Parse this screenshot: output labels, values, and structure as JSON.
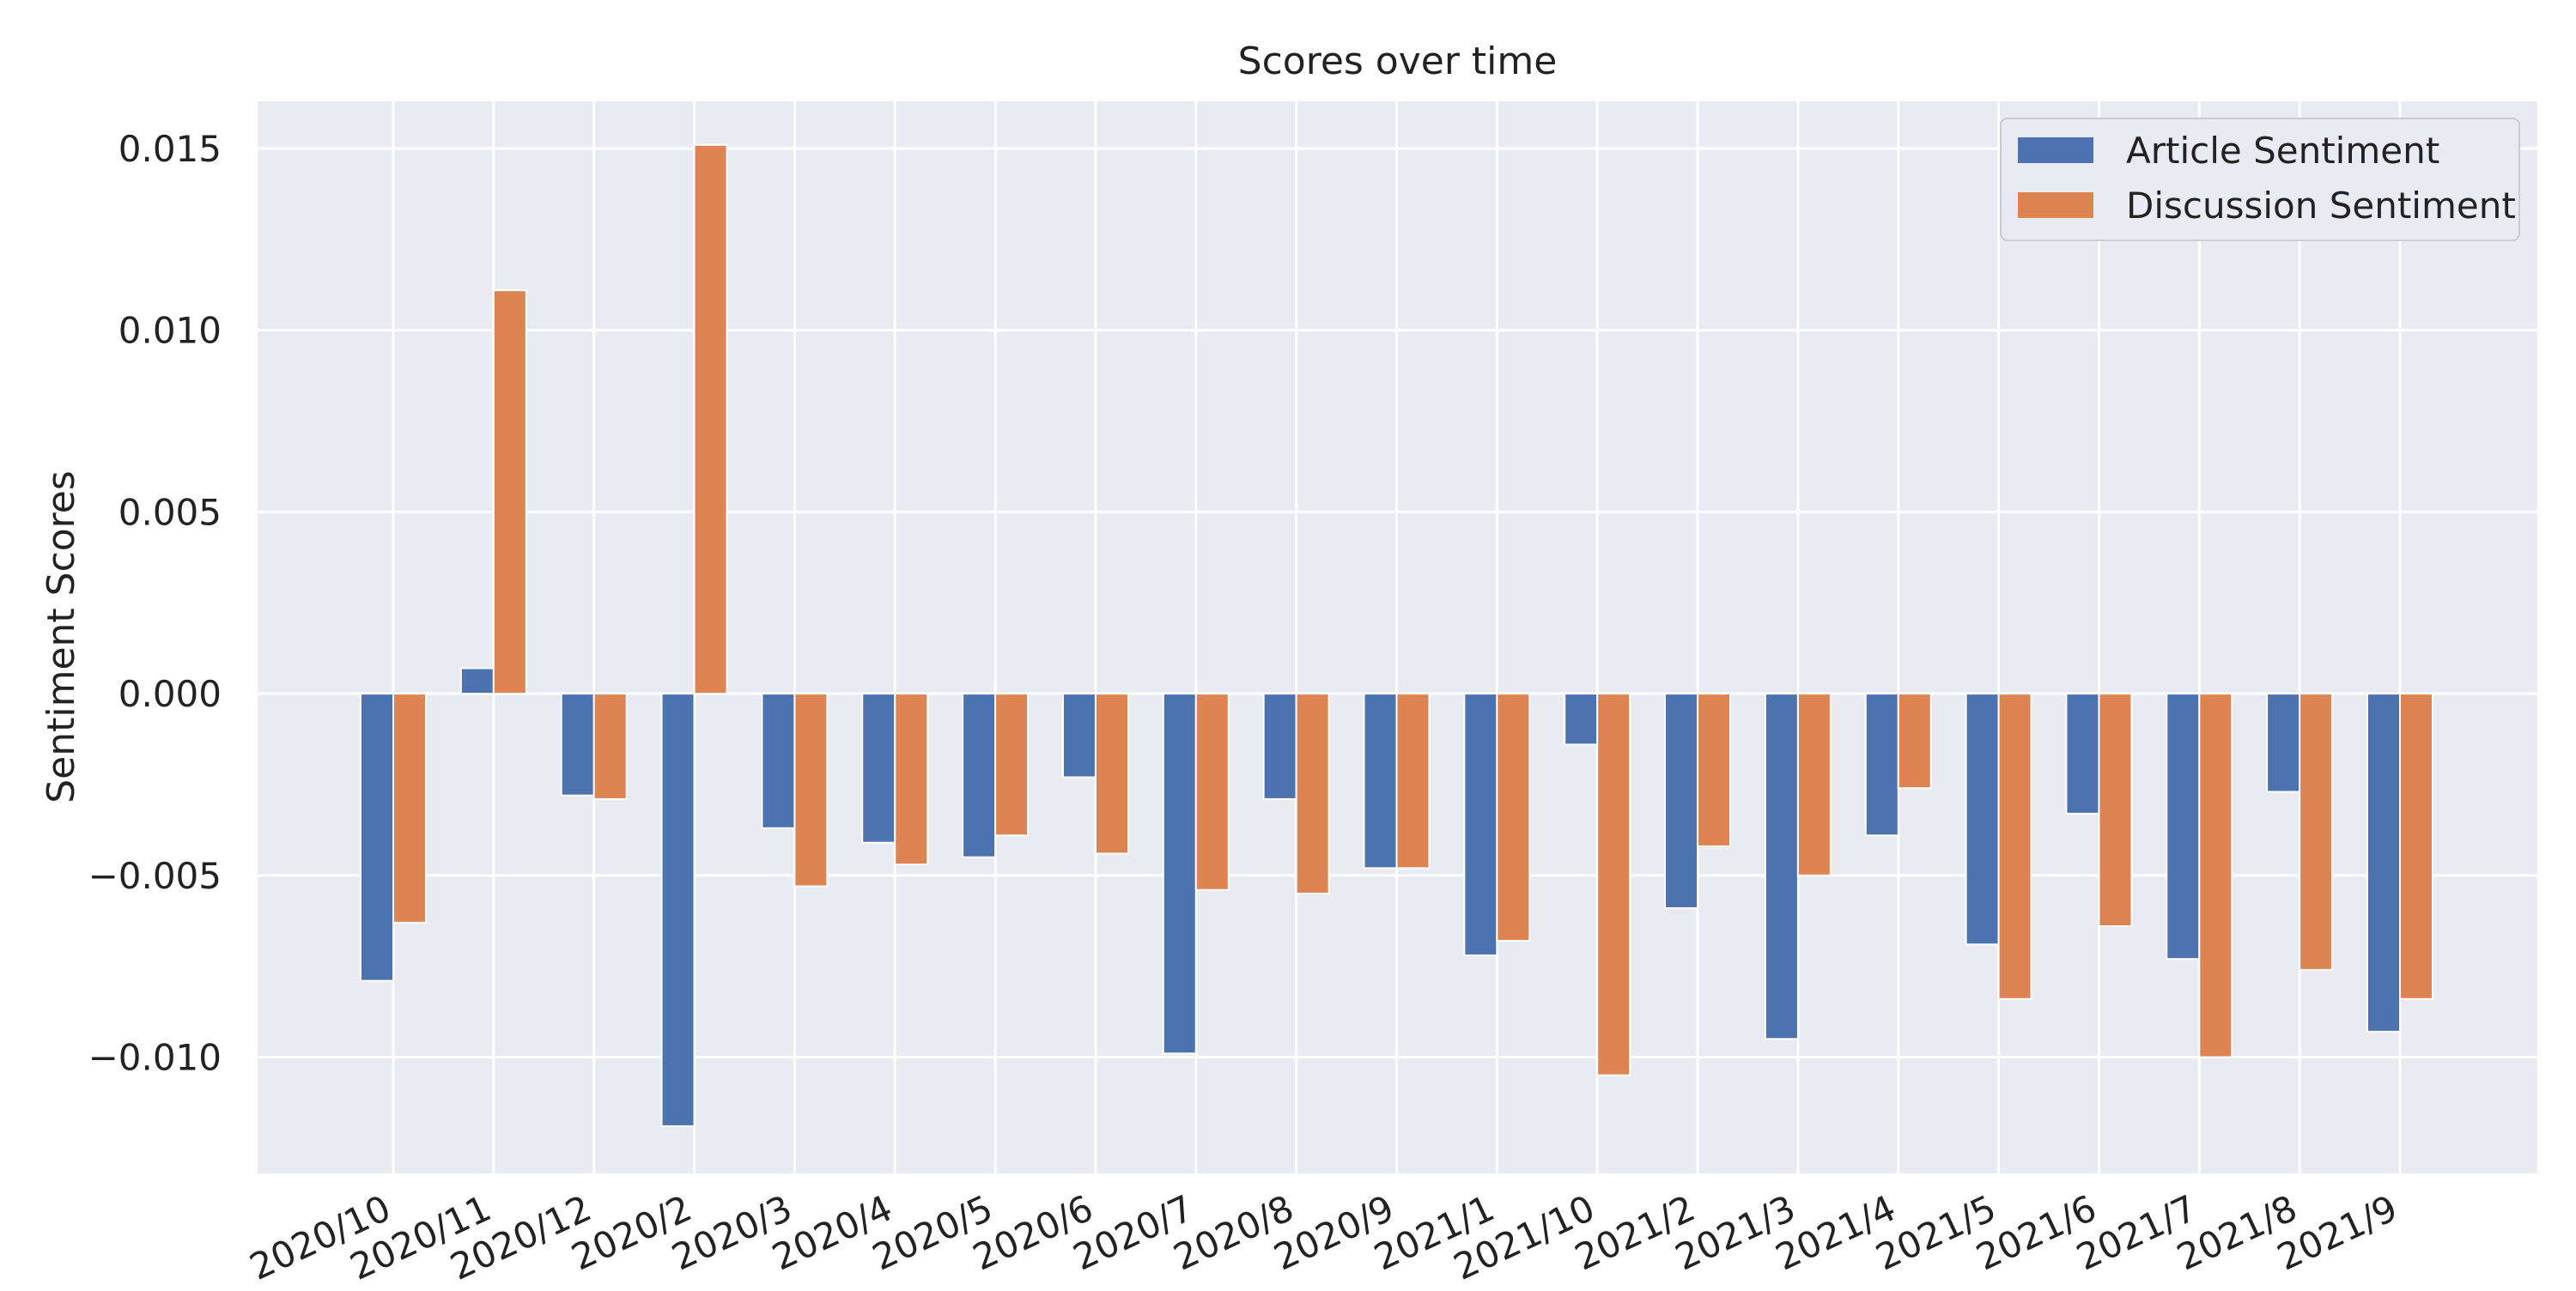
{
  "chart_data": {
    "type": "bar",
    "title": "Scores over time",
    "xlabel": "",
    "ylabel": "Sentiment Scores",
    "ylim": [
      -0.0132,
      0.0163
    ],
    "yticks": [
      -0.01,
      -0.005,
      0.0,
      0.005,
      0.01,
      0.015
    ],
    "ytick_labels": [
      "−0.010",
      "−0.005",
      "0.000",
      "0.005",
      "0.010",
      "0.015"
    ],
    "grid": true,
    "legend_position": "top-right",
    "categories": [
      "2020/10",
      "2020/11",
      "2020/12",
      "2020/2",
      "2020/3",
      "2020/4",
      "2020/5",
      "2020/6",
      "2020/7",
      "2020/8",
      "2020/9",
      "2021/1",
      "2021/10",
      "2021/2",
      "2021/3",
      "2021/4",
      "2021/5",
      "2021/6",
      "2021/7",
      "2021/8",
      "2021/9"
    ],
    "series": [
      {
        "name": "Article Sentiment",
        "color": "#4c72b0",
        "values": [
          -0.0079,
          0.0007,
          -0.0028,
          -0.0119,
          -0.0037,
          -0.0041,
          -0.0045,
          -0.0023,
          -0.0099,
          -0.0029,
          -0.0048,
          -0.0072,
          -0.0014,
          -0.0059,
          -0.0095,
          -0.0039,
          -0.0069,
          -0.0033,
          -0.0073,
          -0.0027,
          -0.0093
        ]
      },
      {
        "name": "Discussion Sentiment",
        "color": "#dd8452",
        "values": [
          -0.0063,
          0.0111,
          -0.0029,
          0.0151,
          -0.0053,
          -0.0047,
          -0.0039,
          -0.0044,
          -0.0054,
          -0.0055,
          -0.0048,
          -0.0068,
          -0.0105,
          -0.0042,
          -0.005,
          -0.0026,
          -0.0084,
          -0.0064,
          -0.01,
          -0.0076,
          -0.0084
        ]
      }
    ],
    "colors": {
      "plot_background": "#eaeaf2",
      "grid": "#ffffff"
    }
  }
}
